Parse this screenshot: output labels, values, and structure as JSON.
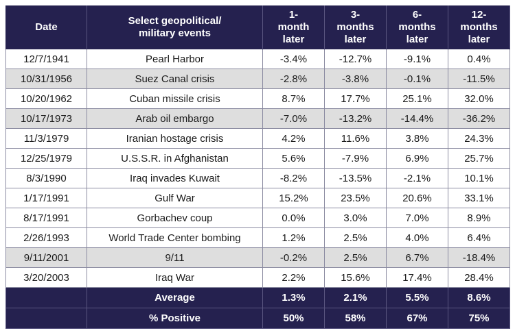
{
  "headers": [
    "Date",
    "Select geopolitical/\nmilitary events",
    "1-\nmonth\nlater",
    "3-\nmonths\nlater",
    "6-\nmonths\nlater",
    "12-\nmonths\nlater"
  ],
  "rows": [
    {
      "date": "12/7/1941",
      "event": "Pearl Harbor",
      "m1": "-3.4%",
      "m3": "-12.7%",
      "m6": "-9.1%",
      "m12": "0.4%"
    },
    {
      "date": "10/31/1956",
      "event": "Suez Canal crisis",
      "m1": "-2.8%",
      "m3": "-3.8%",
      "m6": "-0.1%",
      "m12": "-11.5%"
    },
    {
      "date": "10/20/1962",
      "event": "Cuban missile crisis",
      "m1": "8.7%",
      "m3": "17.7%",
      "m6": "25.1%",
      "m12": "32.0%"
    },
    {
      "date": "10/17/1973",
      "event": "Arab oil embargo",
      "m1": "-7.0%",
      "m3": "-13.2%",
      "m6": "-14.4%",
      "m12": "-36.2%"
    },
    {
      "date": "11/3/1979",
      "event": "Iranian hostage crisis",
      "m1": "4.2%",
      "m3": "11.6%",
      "m6": "3.8%",
      "m12": "24.3%"
    },
    {
      "date": "12/25/1979",
      "event": "U.S.S.R. in Afghanistan",
      "m1": "5.6%",
      "m3": "-7.9%",
      "m6": "6.9%",
      "m12": "25.7%"
    },
    {
      "date": "8/3/1990",
      "event": "Iraq invades Kuwait",
      "m1": "-8.2%",
      "m3": "-13.5%",
      "m6": "-2.1%",
      "m12": "10.1%"
    },
    {
      "date": "1/17/1991",
      "event": "Gulf War",
      "m1": "15.2%",
      "m3": "23.5%",
      "m6": "20.6%",
      "m12": "33.1%"
    },
    {
      "date": "8/17/1991",
      "event": "Gorbachev coup",
      "m1": "0.0%",
      "m3": "3.0%",
      "m6": "7.0%",
      "m12": "8.9%"
    },
    {
      "date": "2/26/1993",
      "event": "World Trade Center bombing",
      "m1": "1.2%",
      "m3": "2.5%",
      "m6": "4.0%",
      "m12": "6.4%"
    },
    {
      "date": "9/11/2001",
      "event": "9/11",
      "m1": "-0.2%",
      "m3": "2.5%",
      "m6": "6.7%",
      "m12": "-18.4%"
    },
    {
      "date": "3/20/2003",
      "event": "Iraq War",
      "m1": "2.2%",
      "m3": "15.6%",
      "m6": "17.4%",
      "m12": "28.4%"
    }
  ],
  "summary": [
    {
      "label": "Average",
      "m1": "1.3%",
      "m3": "2.1%",
      "m6": "5.5%",
      "m12": "8.6%"
    },
    {
      "label": "% Positive",
      "m1": "50%",
      "m3": "58%",
      "m6": "67%",
      "m12": "75%"
    }
  ],
  "colors": {
    "header_bg": "#25214f",
    "shade_bg": "#dedede"
  }
}
